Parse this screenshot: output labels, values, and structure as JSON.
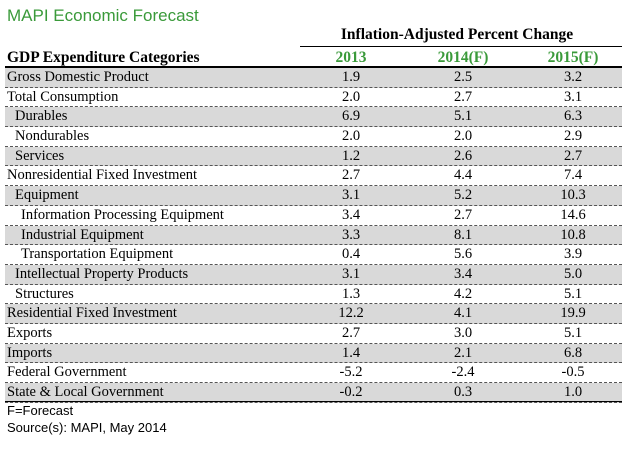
{
  "title": "MAPI Economic Forecast",
  "group_header": "Inflation-Adjusted Percent Change",
  "category_header": "GDP Expenditure Categories",
  "years": [
    "2013",
    "2014(F)",
    "2015(F)"
  ],
  "rows": [
    {
      "label": "Gross Domestic Product",
      "indent": 0,
      "shade": true,
      "values": [
        "1.9",
        "2.5",
        "3.2"
      ]
    },
    {
      "label": "Total Consumption",
      "indent": 0,
      "shade": false,
      "values": [
        "2.0",
        "2.7",
        "3.1"
      ]
    },
    {
      "label": "Durables",
      "indent": 1,
      "shade": true,
      "values": [
        "6.9",
        "5.1",
        "6.3"
      ]
    },
    {
      "label": "Nondurables",
      "indent": 1,
      "shade": false,
      "values": [
        "2.0",
        "2.0",
        "2.9"
      ]
    },
    {
      "label": "Services",
      "indent": 1,
      "shade": true,
      "values": [
        "1.2",
        "2.6",
        "2.7"
      ]
    },
    {
      "label": "Nonresidential Fixed Investment",
      "indent": 0,
      "shade": false,
      "values": [
        "2.7",
        "4.4",
        "7.4"
      ]
    },
    {
      "label": "Equipment",
      "indent": 1,
      "shade": true,
      "values": [
        "3.1",
        "5.2",
        "10.3"
      ]
    },
    {
      "label": "Information Processing Equipment",
      "indent": 2,
      "shade": false,
      "values": [
        "3.4",
        "2.7",
        "14.6"
      ]
    },
    {
      "label": "Industrial Equipment",
      "indent": 2,
      "shade": true,
      "values": [
        "3.3",
        "8.1",
        "10.8"
      ]
    },
    {
      "label": "Transportation Equipment",
      "indent": 2,
      "shade": false,
      "values": [
        "0.4",
        "5.6",
        "3.9"
      ]
    },
    {
      "label": "Intellectual Property Products",
      "indent": 1,
      "shade": true,
      "values": [
        "3.1",
        "3.4",
        "5.0"
      ]
    },
    {
      "label": "Structures",
      "indent": 1,
      "shade": false,
      "values": [
        "1.3",
        "4.2",
        "5.1"
      ]
    },
    {
      "label": "Residential Fixed Investment",
      "indent": 0,
      "shade": true,
      "values": [
        "12.2",
        "4.1",
        "19.9"
      ]
    },
    {
      "label": "Exports",
      "indent": 0,
      "shade": false,
      "values": [
        "2.7",
        "3.0",
        "5.1"
      ]
    },
    {
      "label": "Imports",
      "indent": 0,
      "shade": true,
      "values": [
        "1.4",
        "2.1",
        "6.8"
      ]
    },
    {
      "label": "Federal Government",
      "indent": 0,
      "shade": false,
      "values": [
        "-5.2",
        "-2.4",
        "-0.5"
      ]
    },
    {
      "label": "State & Local Government",
      "indent": 0,
      "shade": true,
      "values": [
        "-0.2",
        "0.3",
        "1.0"
      ]
    }
  ],
  "footnote_forecast": "F=Forecast",
  "footnote_source": "Source(s): MAPI, May 2014"
}
